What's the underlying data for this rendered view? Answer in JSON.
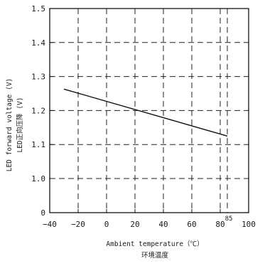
{
  "chart_data": {
    "type": "line",
    "xlabel": "Ambient temperature（℃）",
    "xlabel_cn": "环境温度",
    "ylabel": "LED forward voltage (V)",
    "ylabel_cn": "LED正向压降 (V)",
    "xlim": [
      -40,
      100
    ],
    "ylim": [
      0,
      1.5
    ],
    "y_axis_break": true,
    "x_ticks": [
      -40,
      -20,
      0,
      20,
      40,
      60,
      80,
      100
    ],
    "y_ticks": [
      0,
      1.0,
      1.1,
      1.2,
      1.3,
      1.4,
      1.5
    ],
    "x_tick_labels": [
      "−40",
      "−20",
      "0",
      "20",
      "40",
      "60",
      "80",
      "100"
    ],
    "y_tick_labels": [
      "0",
      "1.0",
      "1.1",
      "1.2",
      "1.3",
      "1.4",
      "1.5"
    ],
    "extra_vline": {
      "x": 85,
      "label": "85"
    },
    "grid": true,
    "series": [
      {
        "x": [
          -30,
          85
        ],
        "y": [
          1.263,
          1.125
        ]
      }
    ]
  }
}
